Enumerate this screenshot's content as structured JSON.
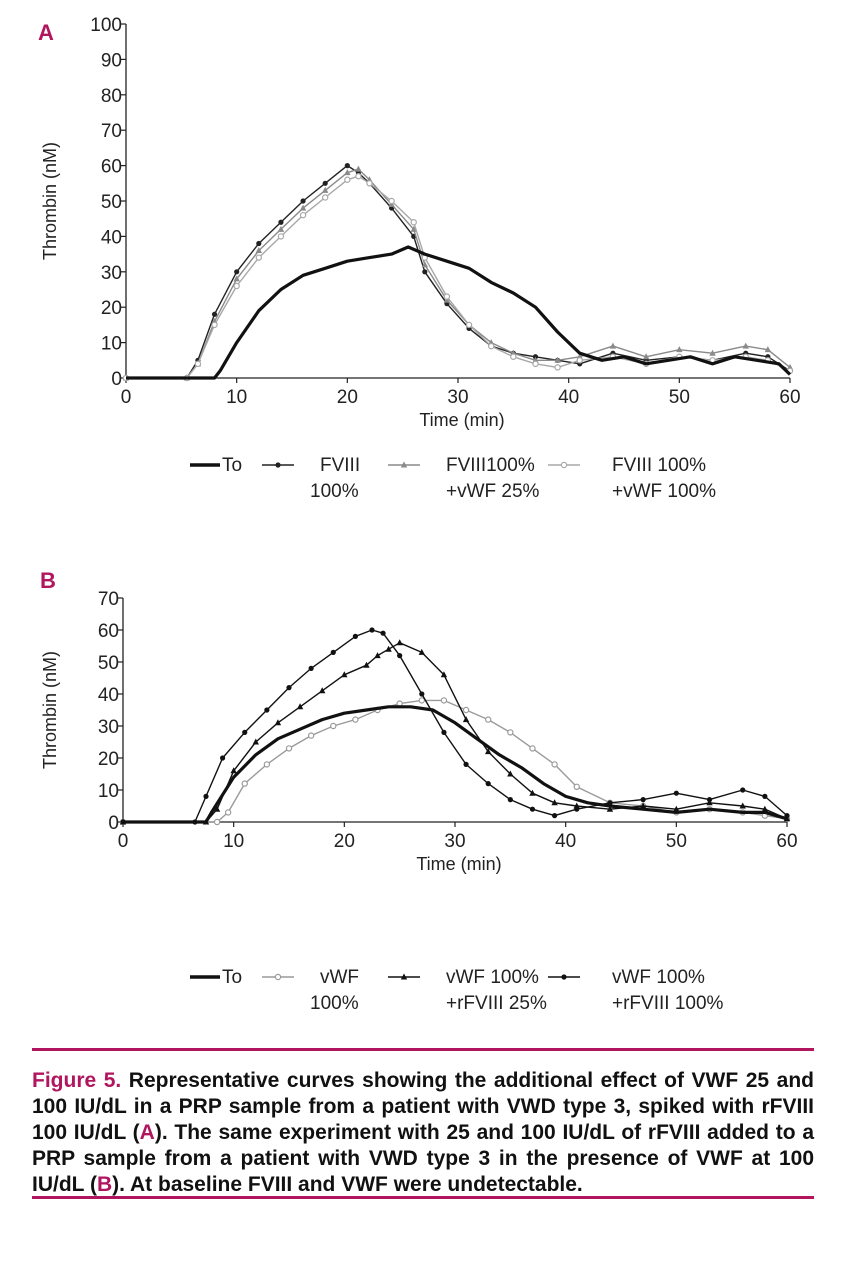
{
  "chart_data": [
    {
      "panel": "A",
      "type": "line",
      "xlabel": "Time (min)",
      "ylabel": "Thrombin (nM)",
      "xlim": [
        0,
        60
      ],
      "ylim": [
        0,
        100
      ],
      "xticks": [
        "0",
        "10",
        "20",
        "30",
        "40",
        "50",
        "60"
      ],
      "yticks": [
        "0",
        "10",
        "20",
        "30",
        "40",
        "50",
        "60",
        "70",
        "80",
        "90",
        "100"
      ],
      "legend": [
        {
          "line1": "To",
          "line2": ""
        },
        {
          "line1": "FVIII",
          "line2": "100%"
        },
        {
          "line1": "FVIII100%",
          "line2": "+vWF 25%"
        },
        {
          "line1": "FVIII 100%",
          "line2": "+vWF 100%"
        }
      ],
      "series": [
        {
          "name": "To",
          "color": "#111111",
          "style": "thick",
          "x": [
            0,
            6,
            8,
            8.5,
            10,
            12,
            14,
            16,
            18,
            20,
            22,
            24,
            25.5,
            27,
            29,
            31,
            33,
            35,
            37,
            39,
            41,
            43,
            45,
            47,
            49,
            51,
            53,
            55,
            57,
            59,
            60
          ],
          "y": [
            0,
            0,
            0,
            2,
            10,
            19,
            25,
            29,
            31,
            33,
            34,
            35,
            37,
            35,
            33,
            31,
            27,
            24,
            20,
            13,
            7,
            5,
            6,
            4,
            5,
            6,
            4,
            6,
            5,
            4,
            1
          ]
        },
        {
          "name": "FVIII 100%",
          "color": "#222222",
          "style": "dots",
          "x": [
            0,
            5.5,
            6.5,
            8,
            10,
            12,
            14,
            16,
            18,
            20,
            21,
            22,
            24,
            26,
            27,
            29,
            31,
            33,
            35,
            37,
            39,
            41,
            44,
            47,
            50,
            53,
            56,
            58,
            60
          ],
          "y": [
            0,
            0,
            5,
            18,
            30,
            38,
            44,
            50,
            55,
            60,
            58,
            55,
            48,
            40,
            30,
            21,
            14,
            9,
            7,
            6,
            5,
            4,
            7,
            5,
            6,
            5,
            7,
            6,
            2
          ]
        },
        {
          "name": "FVIII100% +vWF 25%",
          "color": "#8a8a8a",
          "style": "triangles",
          "x": [
            0,
            5.5,
            6.5,
            8,
            10,
            12,
            14,
            16,
            18,
            20,
            21,
            22,
            24,
            26,
            27,
            29,
            31,
            33,
            35,
            37,
            39,
            41,
            44,
            47,
            50,
            53,
            56,
            58,
            60
          ],
          "y": [
            0,
            0,
            4,
            16,
            28,
            36,
            42,
            48,
            53,
            58,
            59,
            56,
            49,
            42,
            32,
            22,
            15,
            10,
            7,
            5,
            5,
            6,
            9,
            6,
            8,
            7,
            9,
            8,
            3
          ]
        },
        {
          "name": "FVIII 100% +vWF 100%",
          "color": "#a8a8a8",
          "style": "circles",
          "x": [
            0,
            5.5,
            6.5,
            8,
            10,
            12,
            14,
            16,
            18,
            20,
            21,
            22,
            24,
            26,
            27,
            29,
            31,
            33,
            35,
            37,
            39,
            41,
            44,
            47,
            50,
            53,
            56,
            58,
            60
          ],
          "y": [
            0,
            0,
            4,
            15,
            26,
            34,
            40,
            46,
            51,
            56,
            57,
            55,
            50,
            44,
            34,
            23,
            15,
            9,
            6,
            4,
            3,
            5,
            6,
            4,
            6,
            5,
            6,
            5,
            2
          ]
        }
      ]
    },
    {
      "panel": "B",
      "type": "line",
      "xlabel": "Time (min)",
      "ylabel": "Thrombin (nM)",
      "xlim": [
        0,
        60
      ],
      "ylim": [
        0,
        70
      ],
      "xticks": [
        "0",
        "10",
        "20",
        "30",
        "40",
        "50",
        "60"
      ],
      "yticks": [
        "0",
        "10",
        "20",
        "30",
        "40",
        "50",
        "60",
        "70"
      ],
      "legend": [
        {
          "line1": "To",
          "line2": ""
        },
        {
          "line1": "vWF",
          "line2": "100%"
        },
        {
          "line1": "vWF 100%",
          "line2": "+rFVIII 25%"
        },
        {
          "line1": "vWF 100%",
          "line2": "+rFVIII 100%"
        }
      ],
      "series": [
        {
          "name": "To",
          "color": "#111111",
          "style": "thick",
          "x": [
            0,
            7,
            7.5,
            8,
            10,
            12,
            14,
            16,
            18,
            20,
            22,
            24,
            26,
            28,
            30,
            32,
            34,
            36,
            38,
            40,
            42,
            44,
            47,
            50,
            53,
            56,
            58,
            60
          ],
          "y": [
            0,
            0,
            0,
            3,
            14,
            21,
            26,
            29,
            32,
            34,
            35,
            36,
            36,
            35,
            31,
            26,
            21,
            17,
            12,
            8,
            6,
            5,
            4,
            3,
            4,
            3,
            3,
            1
          ]
        },
        {
          "name": "vWF 100%",
          "color": "#9a9a9a",
          "style": "circles",
          "x": [
            0,
            8.5,
            9.5,
            11,
            13,
            15,
            17,
            19,
            21,
            23,
            25,
            27,
            29,
            31,
            33,
            35,
            37,
            39,
            41,
            44,
            47,
            50,
            53,
            56,
            58,
            60
          ],
          "y": [
            0,
            0,
            3,
            12,
            18,
            23,
            27,
            30,
            32,
            35,
            37,
            38,
            38,
            35,
            32,
            28,
            23,
            18,
            11,
            6,
            5,
            3,
            4,
            3,
            2,
            1
          ]
        },
        {
          "name": "vWF 100% +rFVIII 25%",
          "color": "#111111",
          "style": "triangles",
          "x": [
            0,
            7.5,
            8.5,
            10,
            12,
            14,
            16,
            18,
            20,
            22,
            23,
            24,
            25,
            27,
            29,
            31,
            33,
            35,
            37,
            39,
            41,
            44,
            47,
            50,
            53,
            56,
            58,
            60
          ],
          "y": [
            0,
            0,
            4,
            16,
            25,
            31,
            36,
            41,
            46,
            49,
            52,
            54,
            56,
            53,
            46,
            32,
            22,
            15,
            9,
            6,
            5,
            4,
            5,
            4,
            6,
            5,
            4,
            1
          ]
        },
        {
          "name": "vWF 100% +rFVIII 100%",
          "color": "#111111",
          "style": "dots",
          "x": [
            0,
            6.5,
            7.5,
            9,
            11,
            13,
            15,
            17,
            19,
            21,
            22.5,
            23.5,
            25,
            27,
            29,
            31,
            33,
            35,
            37,
            39,
            41,
            44,
            47,
            50,
            53,
            56,
            58,
            60
          ],
          "y": [
            0,
            0,
            8,
            20,
            28,
            35,
            42,
            48,
            53,
            58,
            60,
            59,
            52,
            40,
            28,
            18,
            12,
            7,
            4,
            2,
            4,
            6,
            7,
            9,
            7,
            10,
            8,
            2
          ]
        }
      ]
    }
  ],
  "caption": {
    "figure_label": "Figure 5.",
    "part1": " Representative curves showing the additional effect of VWF 25 and 100 IU/dL in a PRP sample from a patient with VWD type 3, spiked with rFVIII 100 IU/dL (",
    "ref_a": "A",
    "part2": "). The same experiment with 25 and 100 IU/dL of rFVIII added to a PRP sample from a patient with VWD type 3 in the presence of VWF at 100 IU/dL (",
    "ref_b": "B",
    "part3": "). At baseline FVIII and VWF were undetectable."
  }
}
